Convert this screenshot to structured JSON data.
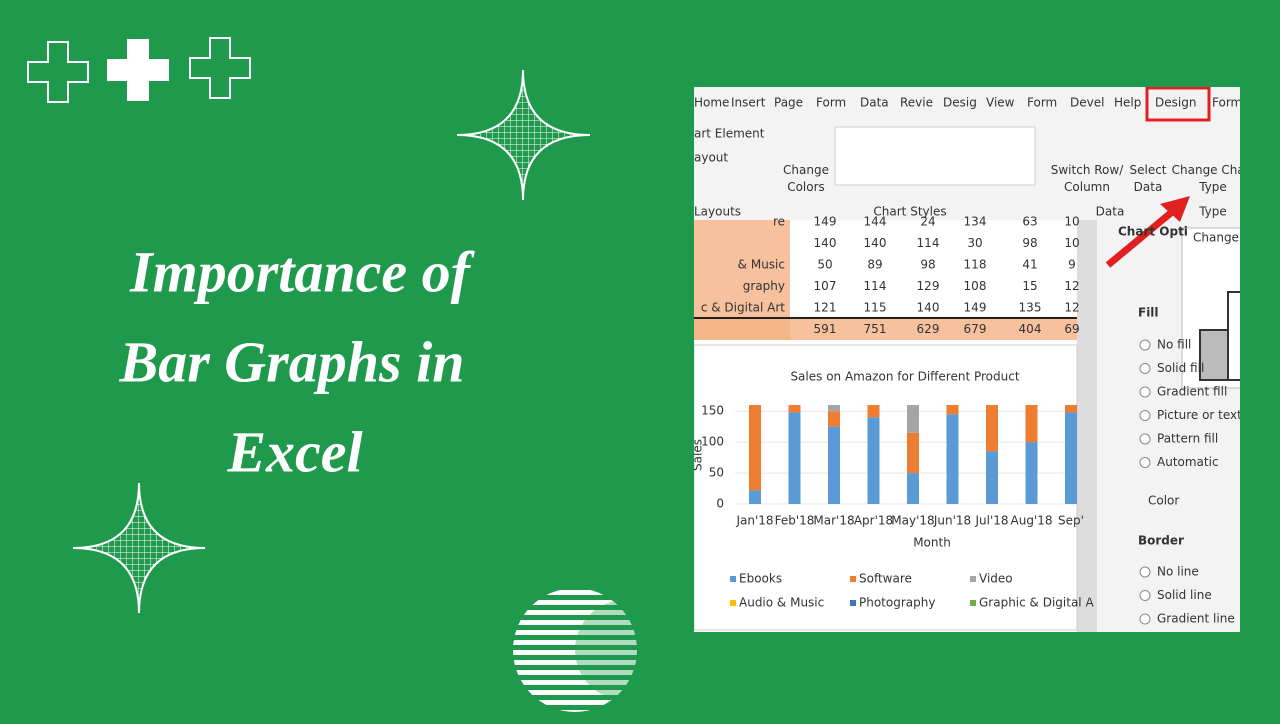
{
  "headline": [
    "Importance of",
    "Bar Graphs in",
    "Excel"
  ],
  "screenshot": {
    "tabs": [
      "Home",
      "Insert",
      "Page",
      "Form",
      "Data",
      "Revie",
      "Desig",
      "View",
      "Form",
      "Devel",
      "Help",
      "Design",
      "Form"
    ],
    "ribbon": {
      "chart_element": "art Element",
      "quick_layout": "ayout",
      "change_colors": "Change Colors",
      "layouts": "Layouts",
      "chart_styles": "Chart Styles",
      "switch_row_column": "Switch Row/ Column",
      "select_data": "Select Data",
      "data": "Data",
      "change_chart_type": "Change Chart Type",
      "type": "Type"
    },
    "table": {
      "rows": [
        {
          "label": "re",
          "cells": [
            "149",
            "144",
            "24",
            "134",
            "63",
            "10"
          ]
        },
        {
          "cells": [
            "140",
            "140",
            "114",
            "30",
            "98",
            "10"
          ]
        },
        {
          "label": "& Music",
          "cells": [
            "50",
            "89",
            "98",
            "118",
            "41",
            "9"
          ]
        },
        {
          "label": "graphy",
          "cells": [
            "107",
            "114",
            "129",
            "108",
            "15",
            "12"
          ]
        },
        {
          "label": "c & Digital Art",
          "cells": [
            "121",
            "115",
            "140",
            "149",
            "135",
            "12"
          ]
        },
        {
          "cells": [
            "591",
            "751",
            "629",
            "679",
            "404",
            "69"
          ]
        }
      ]
    },
    "chart": {
      "type": "bar",
      "stacked": true,
      "title": "Sales on Amazon for Different Product",
      "x_label": "Month",
      "y_label": "Sales",
      "categories": [
        "Jan'18",
        "Feb'18",
        "Mar'18",
        "Apr'18",
        "May'18",
        "Jun'18",
        "Jul'18",
        "Aug'18",
        "Sep'"
      ],
      "series": [
        {
          "name": "Ebooks",
          "color": "#5b9bd5",
          "values": [
            22,
            148,
            125,
            140,
            50,
            145,
            85,
            100,
            148
          ]
        },
        {
          "name": "Software",
          "color": "#ed7d31",
          "values": [
            138,
            12,
            25,
            20,
            65,
            15,
            75,
            60,
            12
          ]
        },
        {
          "name": "Video",
          "color": "#a5a5a5",
          "values": [
            0,
            0,
            10,
            0,
            45,
            0,
            0,
            0,
            0
          ]
        },
        {
          "name": "Audio & Music",
          "color": "#ffc000",
          "values": [
            0,
            0,
            0,
            0,
            0,
            0,
            0,
            0,
            0
          ]
        },
        {
          "name": "Photography",
          "color": "#4472c4",
          "values": [
            0,
            0,
            0,
            0,
            0,
            0,
            0,
            0,
            0
          ]
        },
        {
          "name": "Graphic & Digital A",
          "color": "#70ad47",
          "values": [
            0,
            0,
            0,
            0,
            0,
            0,
            0,
            0,
            0
          ]
        }
      ],
      "ylim": [
        0,
        160
      ],
      "yticks": [
        0,
        50,
        100,
        150
      ]
    },
    "format_pane": {
      "title": "Chart Opti",
      "popup": "Change",
      "fill": "Fill",
      "fill_options": [
        "No fill",
        "Solid fill",
        "Gradient fill",
        "Picture or textu",
        "Pattern fill",
        "Automatic"
      ],
      "color": "Color",
      "border": "Border",
      "border_options": [
        "No line",
        "Solid line",
        "Gradient line"
      ]
    }
  }
}
